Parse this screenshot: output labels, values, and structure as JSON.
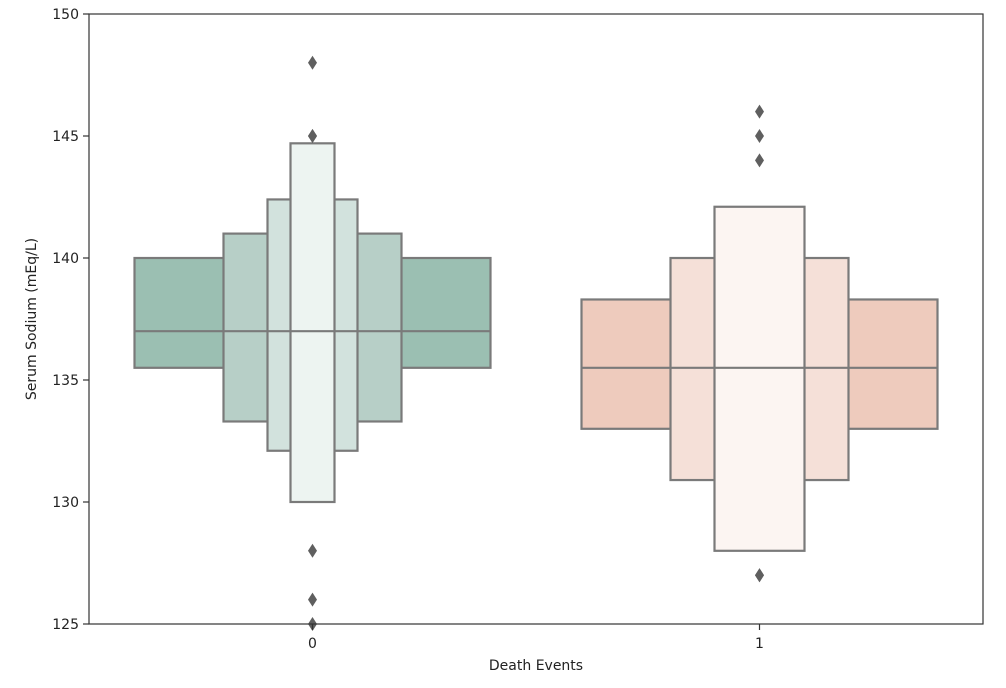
{
  "chart_data": {
    "type": "boxen",
    "title": "",
    "xlabel": "Death Events",
    "ylabel": "Serum Sodium (mEq/L)",
    "ylim": [
      125,
      150
    ],
    "yticks": [
      125,
      130,
      135,
      140,
      145,
      150
    ],
    "categories": [
      "0",
      "1"
    ],
    "grid": false,
    "legend": "none",
    "series": [
      {
        "category": "0",
        "color": "#9bbfb2",
        "median": 137,
        "levels": [
          {
            "low": 135.5,
            "high": 140.0,
            "fill": "#9bbfb2"
          },
          {
            "low": 133.3,
            "high": 141.0,
            "fill": "#b7cfc7"
          },
          {
            "low": 132.1,
            "high": 142.4,
            "fill": "#d2e2dd"
          },
          {
            "low": 130.0,
            "high": 144.7,
            "fill": "#edf4f1"
          }
        ],
        "outliers": [
          148,
          145,
          145,
          128,
          126,
          125
        ]
      },
      {
        "category": "1",
        "color": "#eecbbd",
        "median": 135.5,
        "levels": [
          {
            "low": 133.0,
            "high": 138.3,
            "fill": "#eecbbd"
          },
          {
            "low": 130.9,
            "high": 140.0,
            "fill": "#f5e0d8"
          },
          {
            "low": 128.0,
            "high": 142.1,
            "fill": "#fcf5f2"
          }
        ],
        "outliers": [
          146,
          145,
          144,
          127,
          127
        ]
      }
    ]
  }
}
